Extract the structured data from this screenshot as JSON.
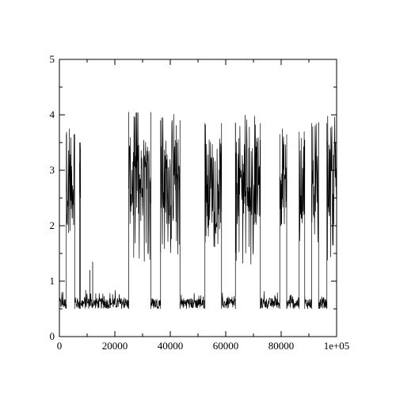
{
  "chart_data": {
    "type": "line",
    "title": "",
    "xlabel": "",
    "ylabel": "",
    "xlim": [
      0,
      100000
    ],
    "ylim": [
      0,
      5
    ],
    "grid": false,
    "legend": "none",
    "line_color": "#000000",
    "x_ticks": [
      {
        "value": 0,
        "label": "0"
      },
      {
        "value": 20000,
        "label": "20000"
      },
      {
        "value": 40000,
        "label": "40000"
      },
      {
        "value": 60000,
        "label": "60000"
      },
      {
        "value": 80000,
        "label": "80000"
      },
      {
        "value": 100000,
        "label": "1e+05"
      }
    ],
    "y_ticks": [
      {
        "value": 0,
        "label": "0"
      },
      {
        "value": 1,
        "label": "1"
      },
      {
        "value": 2,
        "label": "2"
      },
      {
        "value": 3,
        "label": "3"
      },
      {
        "value": 4,
        "label": "4"
      },
      {
        "value": 5,
        "label": "5"
      }
    ],
    "segments": [
      {
        "x_start": 0,
        "x_end": 2500,
        "state": "low",
        "low": 0.5,
        "high": 0.85
      },
      {
        "x_start": 2500,
        "x_end": 5500,
        "state": "high",
        "low": 1.65,
        "high": 3.8
      },
      {
        "x_start": 5500,
        "x_end": 7300,
        "state": "low",
        "low": 0.5,
        "high": 0.8
      },
      {
        "x_start": 7300,
        "x_end": 7600,
        "state": "high",
        "low": 1.7,
        "high": 3.65
      },
      {
        "x_start": 7600,
        "x_end": 25000,
        "state": "low",
        "low": 0.5,
        "high": 0.85
      },
      {
        "x_start": 25000,
        "x_end": 33000,
        "state": "high",
        "low": 1.3,
        "high": 4.2
      },
      {
        "x_start": 33000,
        "x_end": 36500,
        "state": "low",
        "low": 0.5,
        "high": 0.8
      },
      {
        "x_start": 36500,
        "x_end": 43500,
        "state": "high",
        "low": 1.4,
        "high": 4.05
      },
      {
        "x_start": 43500,
        "x_end": 52500,
        "state": "low",
        "low": 0.5,
        "high": 0.8
      },
      {
        "x_start": 52500,
        "x_end": 58500,
        "state": "high",
        "low": 1.6,
        "high": 4.0
      },
      {
        "x_start": 58500,
        "x_end": 63500,
        "state": "low",
        "low": 0.5,
        "high": 0.8
      },
      {
        "x_start": 63500,
        "x_end": 72500,
        "state": "high",
        "low": 1.25,
        "high": 4.0
      },
      {
        "x_start": 72500,
        "x_end": 79500,
        "state": "low",
        "low": 0.5,
        "high": 0.9
      },
      {
        "x_start": 79500,
        "x_end": 82000,
        "state": "high",
        "low": 1.8,
        "high": 3.8
      },
      {
        "x_start": 82000,
        "x_end": 86500,
        "state": "low",
        "low": 0.5,
        "high": 0.8
      },
      {
        "x_start": 86500,
        "x_end": 88500,
        "state": "high",
        "low": 1.65,
        "high": 3.7
      },
      {
        "x_start": 88500,
        "x_end": 91000,
        "state": "low",
        "low": 0.5,
        "high": 0.75
      },
      {
        "x_start": 91000,
        "x_end": 93500,
        "state": "high",
        "low": 1.5,
        "high": 4.0
      },
      {
        "x_start": 93500,
        "x_end": 96500,
        "state": "low",
        "low": 0.5,
        "high": 0.8
      },
      {
        "x_start": 96500,
        "x_end": 100000,
        "state": "high",
        "low": 1.35,
        "high": 4.0
      }
    ],
    "spikes": [
      {
        "x": 11000,
        "y": 1.2
      },
      {
        "x": 12000,
        "y": 1.35
      }
    ]
  }
}
